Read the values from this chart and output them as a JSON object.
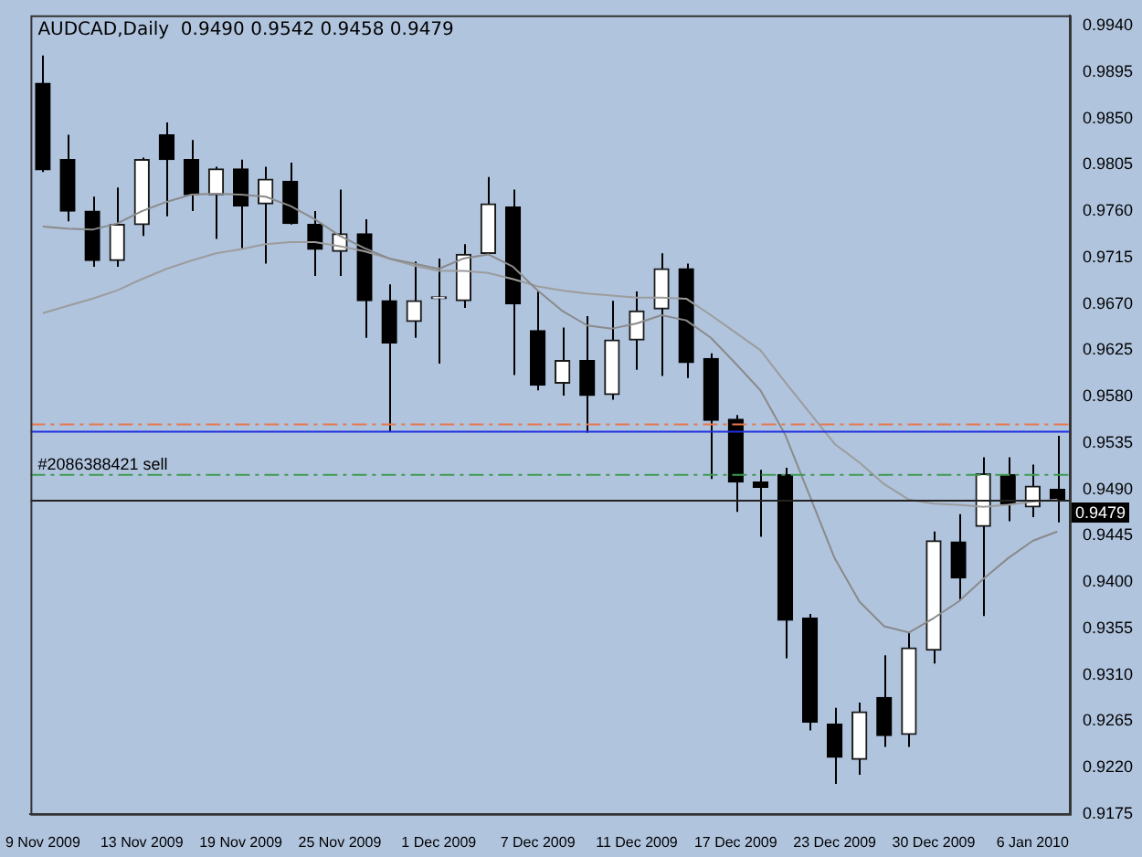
{
  "chart_data": {
    "type": "candlestick",
    "title": "AUDCAD,Daily  0.9490 0.9542 0.9458 0.9479",
    "categories": [
      "9 Nov 2009",
      null,
      null,
      null,
      "13 Nov 2009",
      null,
      null,
      null,
      "19 Nov 2009",
      null,
      null,
      null,
      "25 Nov 2009",
      null,
      null,
      null,
      "1 Dec 2009",
      null,
      null,
      null,
      "7 Dec 2009",
      null,
      null,
      null,
      "11 Dec 2009",
      null,
      null,
      null,
      "17 Dec 2009",
      null,
      null,
      null,
      "23 Dec 2009",
      null,
      null,
      null,
      "30 Dec 2009",
      null,
      null,
      null,
      "6 Jan 2010",
      null
    ],
    "ohlc": [
      [
        0.9884,
        0.9911,
        0.9798,
        0.98
      ],
      [
        0.981,
        0.9834,
        0.975,
        0.976
      ],
      [
        0.976,
        0.9774,
        0.9706,
        0.9712
      ],
      [
        0.9712,
        0.9783,
        0.9706,
        0.9747
      ],
      [
        0.9747,
        0.9812,
        0.9736,
        0.981
      ],
      [
        0.9834,
        0.9846,
        0.9755,
        0.981
      ],
      [
        0.981,
        0.9829,
        0.976,
        0.9776
      ],
      [
        0.9776,
        0.9803,
        0.9733,
        0.9801
      ],
      [
        0.9801,
        0.981,
        0.9723,
        0.9765
      ],
      [
        0.9767,
        0.9803,
        0.9709,
        0.9791
      ],
      [
        0.9789,
        0.9807,
        0.9747,
        0.9748
      ],
      [
        0.9747,
        0.976,
        0.9697,
        0.9723
      ],
      [
        0.9721,
        0.9781,
        0.9697,
        0.9738
      ],
      [
        0.9738,
        0.9752,
        0.9637,
        0.9673
      ],
      [
        0.9673,
        0.9689,
        0.9546,
        0.9632
      ],
      [
        0.9653,
        0.9711,
        0.9637,
        0.9673
      ],
      [
        0.9675,
        0.9714,
        0.9612,
        0.9675
      ],
      [
        0.9673,
        0.9728,
        0.9666,
        0.9718
      ],
      [
        0.9719,
        0.9793,
        0.9719,
        0.9767
      ],
      [
        0.9764,
        0.9781,
        0.9601,
        0.967
      ],
      [
        0.9644,
        0.9682,
        0.9586,
        0.9591
      ],
      [
        0.9593,
        0.9647,
        0.9581,
        0.9615
      ],
      [
        0.9615,
        0.9658,
        0.9545,
        0.9581
      ],
      [
        0.9582,
        0.9673,
        0.9577,
        0.9635
      ],
      [
        0.9635,
        0.9682,
        0.9606,
        0.9663
      ],
      [
        0.9665,
        0.9719,
        0.96,
        0.9704
      ],
      [
        0.9704,
        0.9709,
        0.9598,
        0.9613
      ],
      [
        0.9617,
        0.9622,
        0.95,
        0.9557
      ],
      [
        0.9558,
        0.9562,
        0.9468,
        0.9497
      ],
      [
        0.9497,
        0.9509,
        0.9444,
        0.9492
      ],
      [
        0.9504,
        0.9511,
        0.9326,
        0.9363
      ],
      [
        0.9365,
        0.9369,
        0.9256,
        0.9264
      ],
      [
        0.9262,
        0.9278,
        0.9204,
        0.923
      ],
      [
        0.9228,
        0.9283,
        0.9213,
        0.9274
      ],
      [
        0.9288,
        0.9329,
        0.924,
        0.9251
      ],
      [
        0.9252,
        0.9351,
        0.924,
        0.9336
      ],
      [
        0.9334,
        0.9449,
        0.9321,
        0.944
      ],
      [
        0.9439,
        0.9466,
        0.9382,
        0.9404
      ],
      [
        0.9454,
        0.9521,
        0.9367,
        0.9505
      ],
      [
        0.9504,
        0.9521,
        0.9459,
        0.9476
      ],
      [
        0.9473,
        0.9514,
        0.9463,
        0.9493
      ],
      [
        0.949,
        0.9542,
        0.9458,
        0.9479
      ]
    ],
    "series": [
      {
        "type": "line",
        "color": "#8a8a8a",
        "values": [
          0.9745,
          0.9743,
          0.9742,
          0.9748,
          0.976,
          0.9769,
          0.9776,
          0.9777,
          0.9776,
          0.9774,
          0.9765,
          0.9752,
          0.9736,
          0.9724,
          0.9714,
          0.9709,
          0.9704,
          0.9714,
          0.9718,
          0.9706,
          0.9683,
          0.9663,
          0.9649,
          0.9646,
          0.9651,
          0.9659,
          0.9654,
          0.9637,
          0.9612,
          0.9586,
          0.9543,
          0.9483,
          0.9423,
          0.9381,
          0.9357,
          0.9351,
          0.9365,
          0.9381,
          0.9403,
          0.9423,
          0.944,
          0.9449
        ]
      },
      {
        "type": "line",
        "color": "#9c9c9c",
        "values": [
          0.9661,
          0.9668,
          0.9675,
          0.9683,
          0.9694,
          0.9704,
          0.9712,
          0.9719,
          0.9723,
          0.9728,
          0.973,
          0.973,
          0.9726,
          0.9721,
          0.9714,
          0.9707,
          0.9702,
          0.9702,
          0.97,
          0.9694,
          0.9687,
          0.9683,
          0.968,
          0.9678,
          0.9676,
          0.9676,
          0.9675,
          0.9659,
          0.9642,
          0.9625,
          0.9594,
          0.9564,
          0.9534,
          0.9516,
          0.9495,
          0.948,
          0.9476,
          0.9475,
          0.9473,
          0.9475,
          0.9478,
          0.948
        ]
      }
    ],
    "ylim": [
      0.9175,
      0.995
    ],
    "yticks": [
      {
        "value": 0.994,
        "label": "0.9940"
      },
      {
        "value": 0.9895,
        "label": "0.9895"
      },
      {
        "value": 0.985,
        "label": "0.9850"
      },
      {
        "value": 0.9805,
        "label": "0.9805"
      },
      {
        "value": 0.976,
        "label": "0.9760"
      },
      {
        "value": 0.9715,
        "label": "0.9715"
      },
      {
        "value": 0.967,
        "label": "0.9670"
      },
      {
        "value": 0.9625,
        "label": "0.9625"
      },
      {
        "value": 0.958,
        "label": "0.9580"
      },
      {
        "value": 0.9535,
        "label": "0.9535"
      },
      {
        "value": 0.949,
        "label": "0.9490"
      },
      {
        "value": 0.9445,
        "label": "0.9445"
      },
      {
        "value": 0.94,
        "label": "0.9400"
      },
      {
        "value": 0.9355,
        "label": "0.9355"
      },
      {
        "value": 0.931,
        "label": "0.9310"
      },
      {
        "value": 0.9265,
        "label": "0.9265"
      },
      {
        "value": 0.922,
        "label": "0.9220"
      },
      {
        "value": 0.9175,
        "label": "0.9175"
      }
    ],
    "ref_lines": [
      {
        "axis": "y",
        "value": 0.9553,
        "color": "#e8764c",
        "line_style": "dashed"
      },
      {
        "axis": "y",
        "value": 0.9546,
        "color": "#1f2fe0",
        "line_style": "solid"
      },
      {
        "axis": "y",
        "value": 0.9504,
        "color": "#3c9a50",
        "line_style": "dashed",
        "label": "#2086388421 sell"
      },
      {
        "axis": "y",
        "value": 0.9479,
        "color": "#222222",
        "line_style": "solid",
        "label": "0.9479"
      }
    ],
    "grid": false,
    "legend": false
  }
}
